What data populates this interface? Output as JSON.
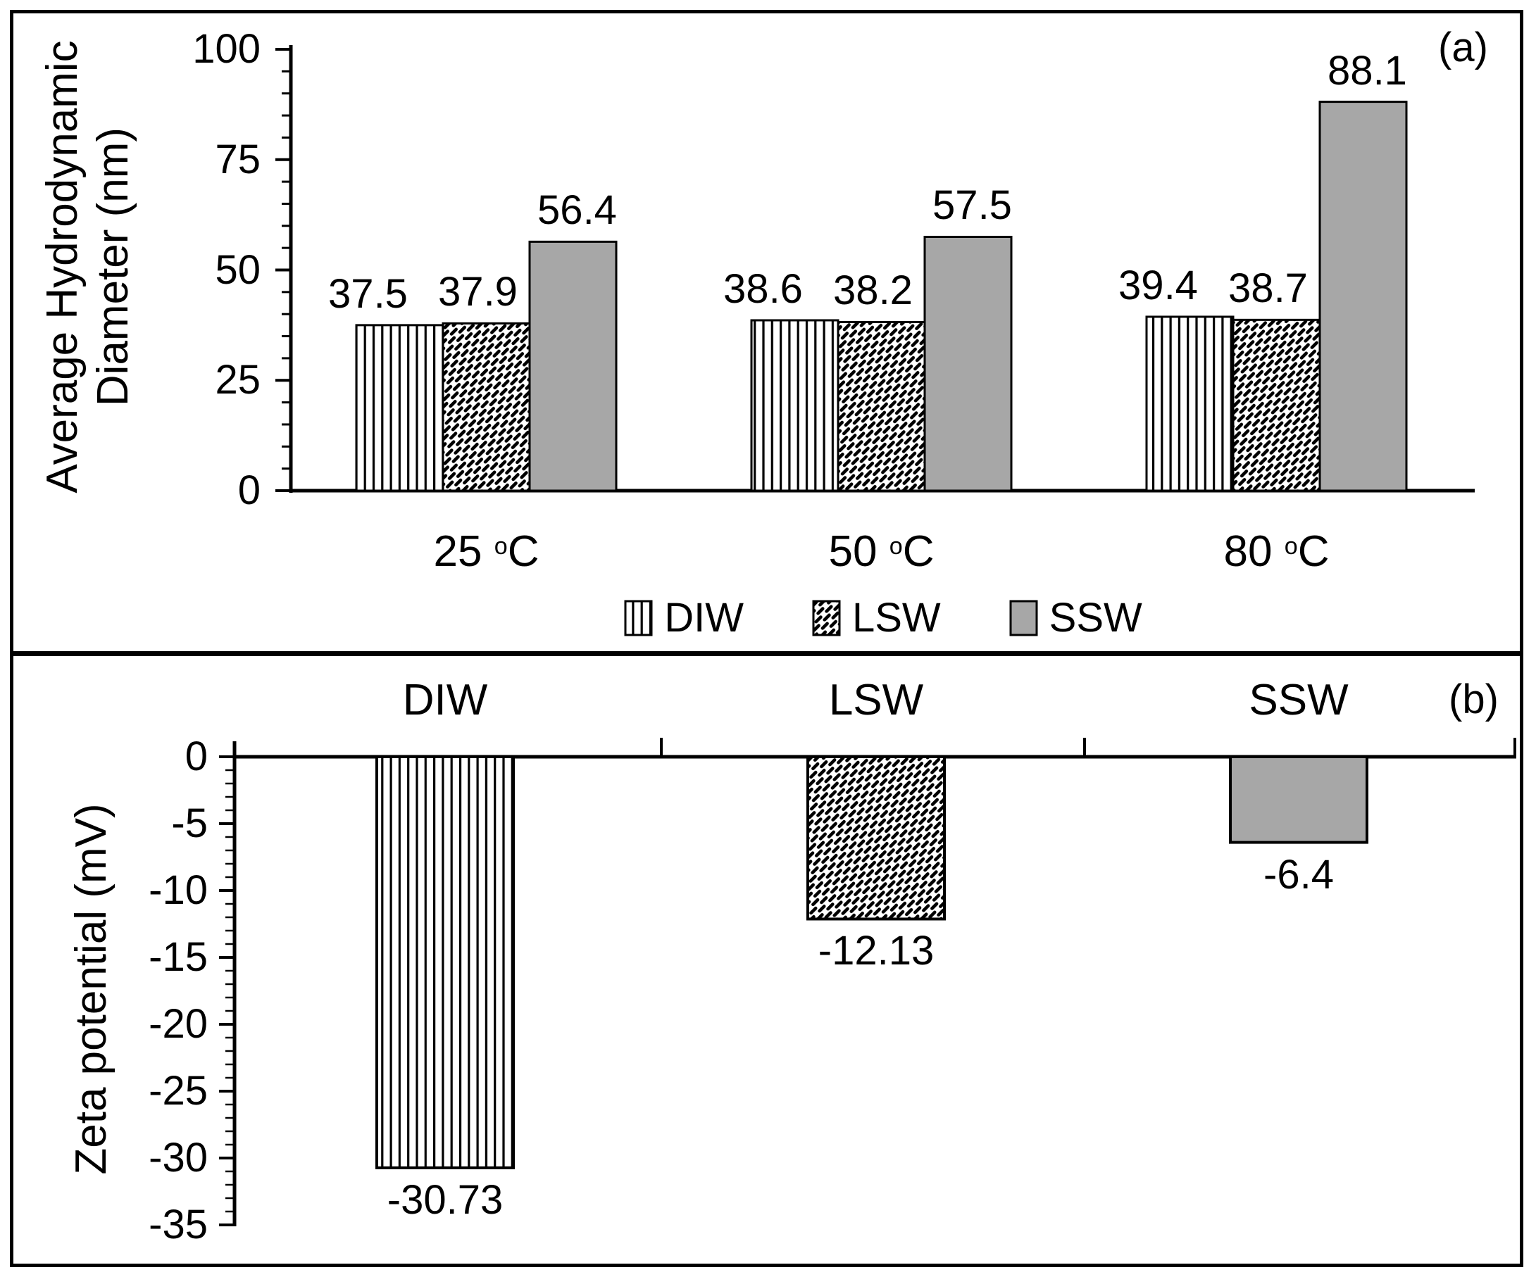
{
  "colors": {
    "ink": "#000000",
    "bar_gray": "#a7a7a7",
    "background": "#ffffff"
  },
  "ui": {
    "panel_a": {
      "tag": "(a)",
      "y_title_lines": [
        "Average Hydrodynamic",
        "Diameter (nm)"
      ],
      "y_tick_labels": [
        "100",
        "75",
        "50",
        "25",
        "0"
      ],
      "category_temps": [
        "25",
        "50",
        "80"
      ],
      "degree_mark": "o",
      "degree_unit": "C",
      "series_value_labels": [
        [
          "37.5",
          "38.6",
          "39.4"
        ],
        [
          "37.9",
          "38.2",
          "38.7"
        ],
        [
          "56.4",
          "57.5",
          "88.1"
        ]
      ],
      "legend": [
        {
          "label": "DIW",
          "pattern": "vertical-stripes"
        },
        {
          "label": "LSW",
          "pattern": "diagonal-brick"
        },
        {
          "label": "SSW",
          "pattern": "solid-gray"
        }
      ]
    },
    "panel_b": {
      "tag": "(b)",
      "y_title": "Zeta potential (mV)",
      "y_tick_labels": [
        "0",
        "-5",
        "-10",
        "-15",
        "-20",
        "-25",
        "-30",
        "-35"
      ],
      "categories": [
        "DIW",
        "LSW",
        "SSW"
      ],
      "value_labels": [
        "-30.73",
        "-12.13",
        "-6.4"
      ]
    }
  },
  "chart_data": [
    {
      "id": "a",
      "type": "bar",
      "panel_label": "(a)",
      "categories": [
        "25 °C",
        "50 °C",
        "80 °C"
      ],
      "series": [
        {
          "name": "DIW",
          "pattern": "vertical-stripes",
          "values": [
            37.5,
            38.6,
            39.4
          ]
        },
        {
          "name": "LSW",
          "pattern": "diagonal-brick",
          "values": [
            37.9,
            38.2,
            38.7
          ]
        },
        {
          "name": "SSW",
          "pattern": "solid-gray",
          "color": "#a7a7a7",
          "values": [
            56.4,
            57.5,
            88.1
          ]
        }
      ],
      "xlabel": "",
      "ylabel": "Average Hydrodynamic Diameter (nm)",
      "ylim": [
        0,
        100
      ],
      "ytick_step": 25,
      "yminor_step": 5,
      "grid": false,
      "legend_position": "bottom",
      "bar_value_labels_visible": true
    },
    {
      "id": "b",
      "type": "bar",
      "panel_label": "(b)",
      "categories": [
        "DIW",
        "LSW",
        "SSW"
      ],
      "series": [
        {
          "name": "Zeta potential",
          "values": [
            -30.73,
            -12.13,
            -6.4
          ]
        }
      ],
      "bar_styles": [
        "vertical-stripes",
        "diagonal-brick",
        "solid-gray"
      ],
      "xlabel": "",
      "ylabel": "Zeta potential (mV)",
      "ylim": [
        -35,
        0
      ],
      "ytick_step": 5,
      "yminor_step": 1,
      "grid": false,
      "legend_position": "none",
      "bar_value_labels_visible": true
    }
  ]
}
